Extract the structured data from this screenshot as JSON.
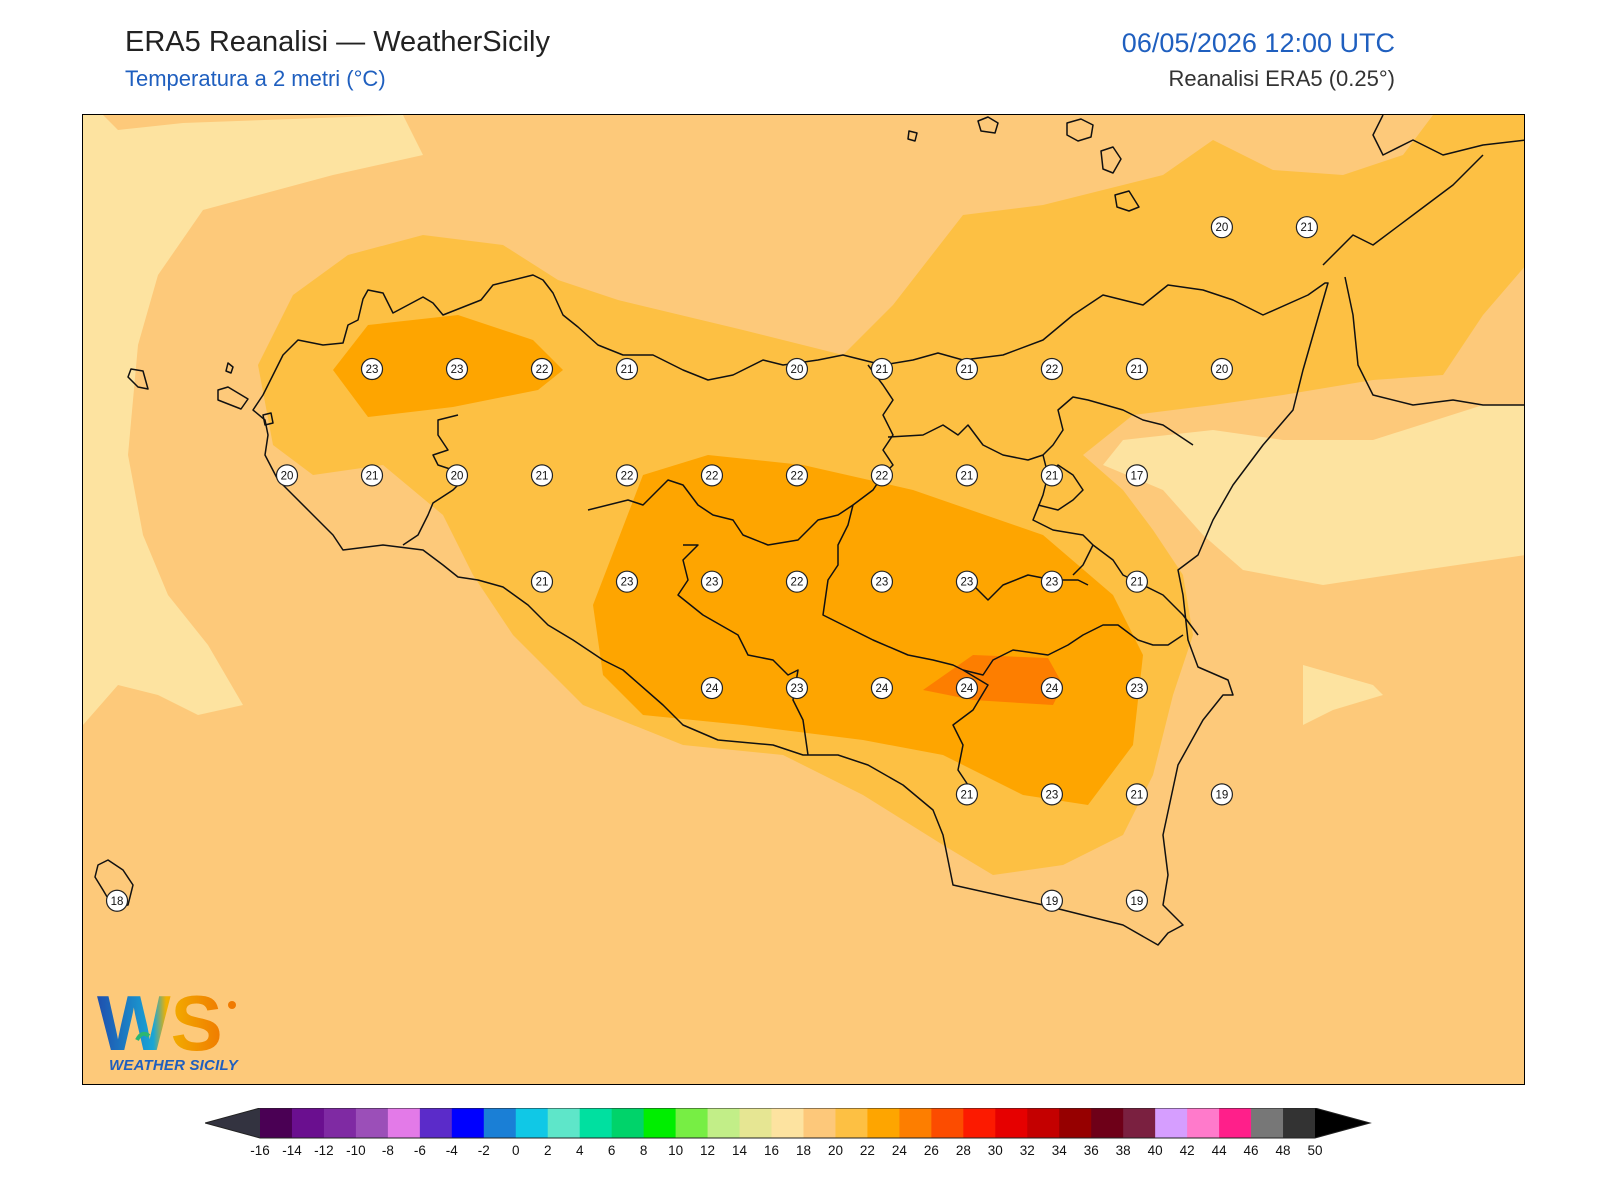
{
  "header": {
    "title": "ERA5 Reanalisi — WeatherSicily",
    "subtitle": "Temperatura a 2 metri (°C)",
    "datetime": "06/05/2026 12:00 UTC",
    "source": "Reanalisi ERA5 (0.25°)"
  },
  "map": {
    "region": "Sicilia",
    "variable": "2m temperature",
    "unit": "°C",
    "station_values": [
      {
        "v": "23",
        "lon": 12.9,
        "lat": 38.0
      },
      {
        "v": "23",
        "lon": 13.2,
        "lat": 38.0
      },
      {
        "v": "22",
        "lon": 13.5,
        "lat": 38.0
      },
      {
        "v": "21",
        "lon": 13.8,
        "lat": 38.0
      },
      {
        "v": "20",
        "lon": 14.4,
        "lat": 38.0
      },
      {
        "v": "21",
        "lon": 14.7,
        "lat": 38.0
      },
      {
        "v": "21",
        "lon": 15.0,
        "lat": 38.0
      },
      {
        "v": "22",
        "lon": 15.3,
        "lat": 38.0
      },
      {
        "v": "21",
        "lon": 15.6,
        "lat": 38.0
      },
      {
        "v": "20",
        "lon": 15.9,
        "lat": 38.0
      },
      {
        "v": "20",
        "lon": 15.9,
        "lat": 38.4
      },
      {
        "v": "21",
        "lon": 16.2,
        "lat": 38.4
      },
      {
        "v": "20",
        "lon": 12.6,
        "lat": 37.7
      },
      {
        "v": "21",
        "lon": 12.9,
        "lat": 37.7
      },
      {
        "v": "20",
        "lon": 13.2,
        "lat": 37.7
      },
      {
        "v": "21",
        "lon": 13.5,
        "lat": 37.7
      },
      {
        "v": "22",
        "lon": 13.8,
        "lat": 37.7
      },
      {
        "v": "22",
        "lon": 14.1,
        "lat": 37.7
      },
      {
        "v": "22",
        "lon": 14.4,
        "lat": 37.7
      },
      {
        "v": "22",
        "lon": 14.7,
        "lat": 37.7
      },
      {
        "v": "21",
        "lon": 15.0,
        "lat": 37.7
      },
      {
        "v": "21",
        "lon": 15.3,
        "lat": 37.7
      },
      {
        "v": "17",
        "lon": 15.6,
        "lat": 37.7
      },
      {
        "v": "21",
        "lon": 13.5,
        "lat": 37.4
      },
      {
        "v": "23",
        "lon": 13.8,
        "lat": 37.4
      },
      {
        "v": "23",
        "lon": 14.1,
        "lat": 37.4
      },
      {
        "v": "22",
        "lon": 14.4,
        "lat": 37.4
      },
      {
        "v": "23",
        "lon": 14.7,
        "lat": 37.4
      },
      {
        "v": "23",
        "lon": 15.0,
        "lat": 37.4
      },
      {
        "v": "23",
        "lon": 15.3,
        "lat": 37.4
      },
      {
        "v": "21",
        "lon": 15.6,
        "lat": 37.4
      },
      {
        "v": "24",
        "lon": 14.1,
        "lat": 37.1
      },
      {
        "v": "23",
        "lon": 14.4,
        "lat": 37.1
      },
      {
        "v": "24",
        "lon": 14.7,
        "lat": 37.1
      },
      {
        "v": "24",
        "lon": 15.0,
        "lat": 37.1
      },
      {
        "v": "24",
        "lon": 15.3,
        "lat": 37.1
      },
      {
        "v": "23",
        "lon": 15.6,
        "lat": 37.1
      },
      {
        "v": "21",
        "lon": 15.0,
        "lat": 36.8
      },
      {
        "v": "23",
        "lon": 15.3,
        "lat": 36.8
      },
      {
        "v": "21",
        "lon": 15.6,
        "lat": 36.8
      },
      {
        "v": "19",
        "lon": 15.9,
        "lat": 36.8
      },
      {
        "v": "18",
        "lon": 12.0,
        "lat": 36.5
      },
      {
        "v": "19",
        "lon": 15.3,
        "lat": 36.5
      },
      {
        "v": "19",
        "lon": 15.6,
        "lat": 36.5
      }
    ]
  },
  "legend": {
    "ticks": [
      "-16",
      "-14",
      "-12",
      "-10",
      "-8",
      "-6",
      "-4",
      "-2",
      "0",
      "2",
      "4",
      "6",
      "8",
      "10",
      "12",
      "14",
      "16",
      "18",
      "20",
      "22",
      "24",
      "26",
      "28",
      "30",
      "32",
      "34",
      "36",
      "38",
      "40",
      "42",
      "44",
      "46",
      "48",
      "50"
    ],
    "colors": [
      "#4a0054",
      "#6a0f8f",
      "#7f2aa3",
      "#9b4fb8",
      "#e37ae8",
      "#5b2bc9",
      "#0000ff",
      "#1a7fd6",
      "#10c8e6",
      "#5ee6c9",
      "#00e0a0",
      "#00d36a",
      "#00ee00",
      "#77ee44",
      "#c2ee88",
      "#e6e693",
      "#fde3a0",
      "#fdc87a",
      "#fdc043",
      "#fea500",
      "#fd7e00",
      "#fc4c00",
      "#fc1a00",
      "#e60000",
      "#c40000",
      "#960000",
      "#6e0018",
      "#7a2040",
      "#d69eff",
      "#ff7acb",
      "#ff1f8a",
      "#777777",
      "#333333"
    ],
    "under_color": "#333340",
    "over_color": "#000000"
  },
  "logo": {
    "letters": "WS",
    "text": "WEATHER SICILY"
  }
}
